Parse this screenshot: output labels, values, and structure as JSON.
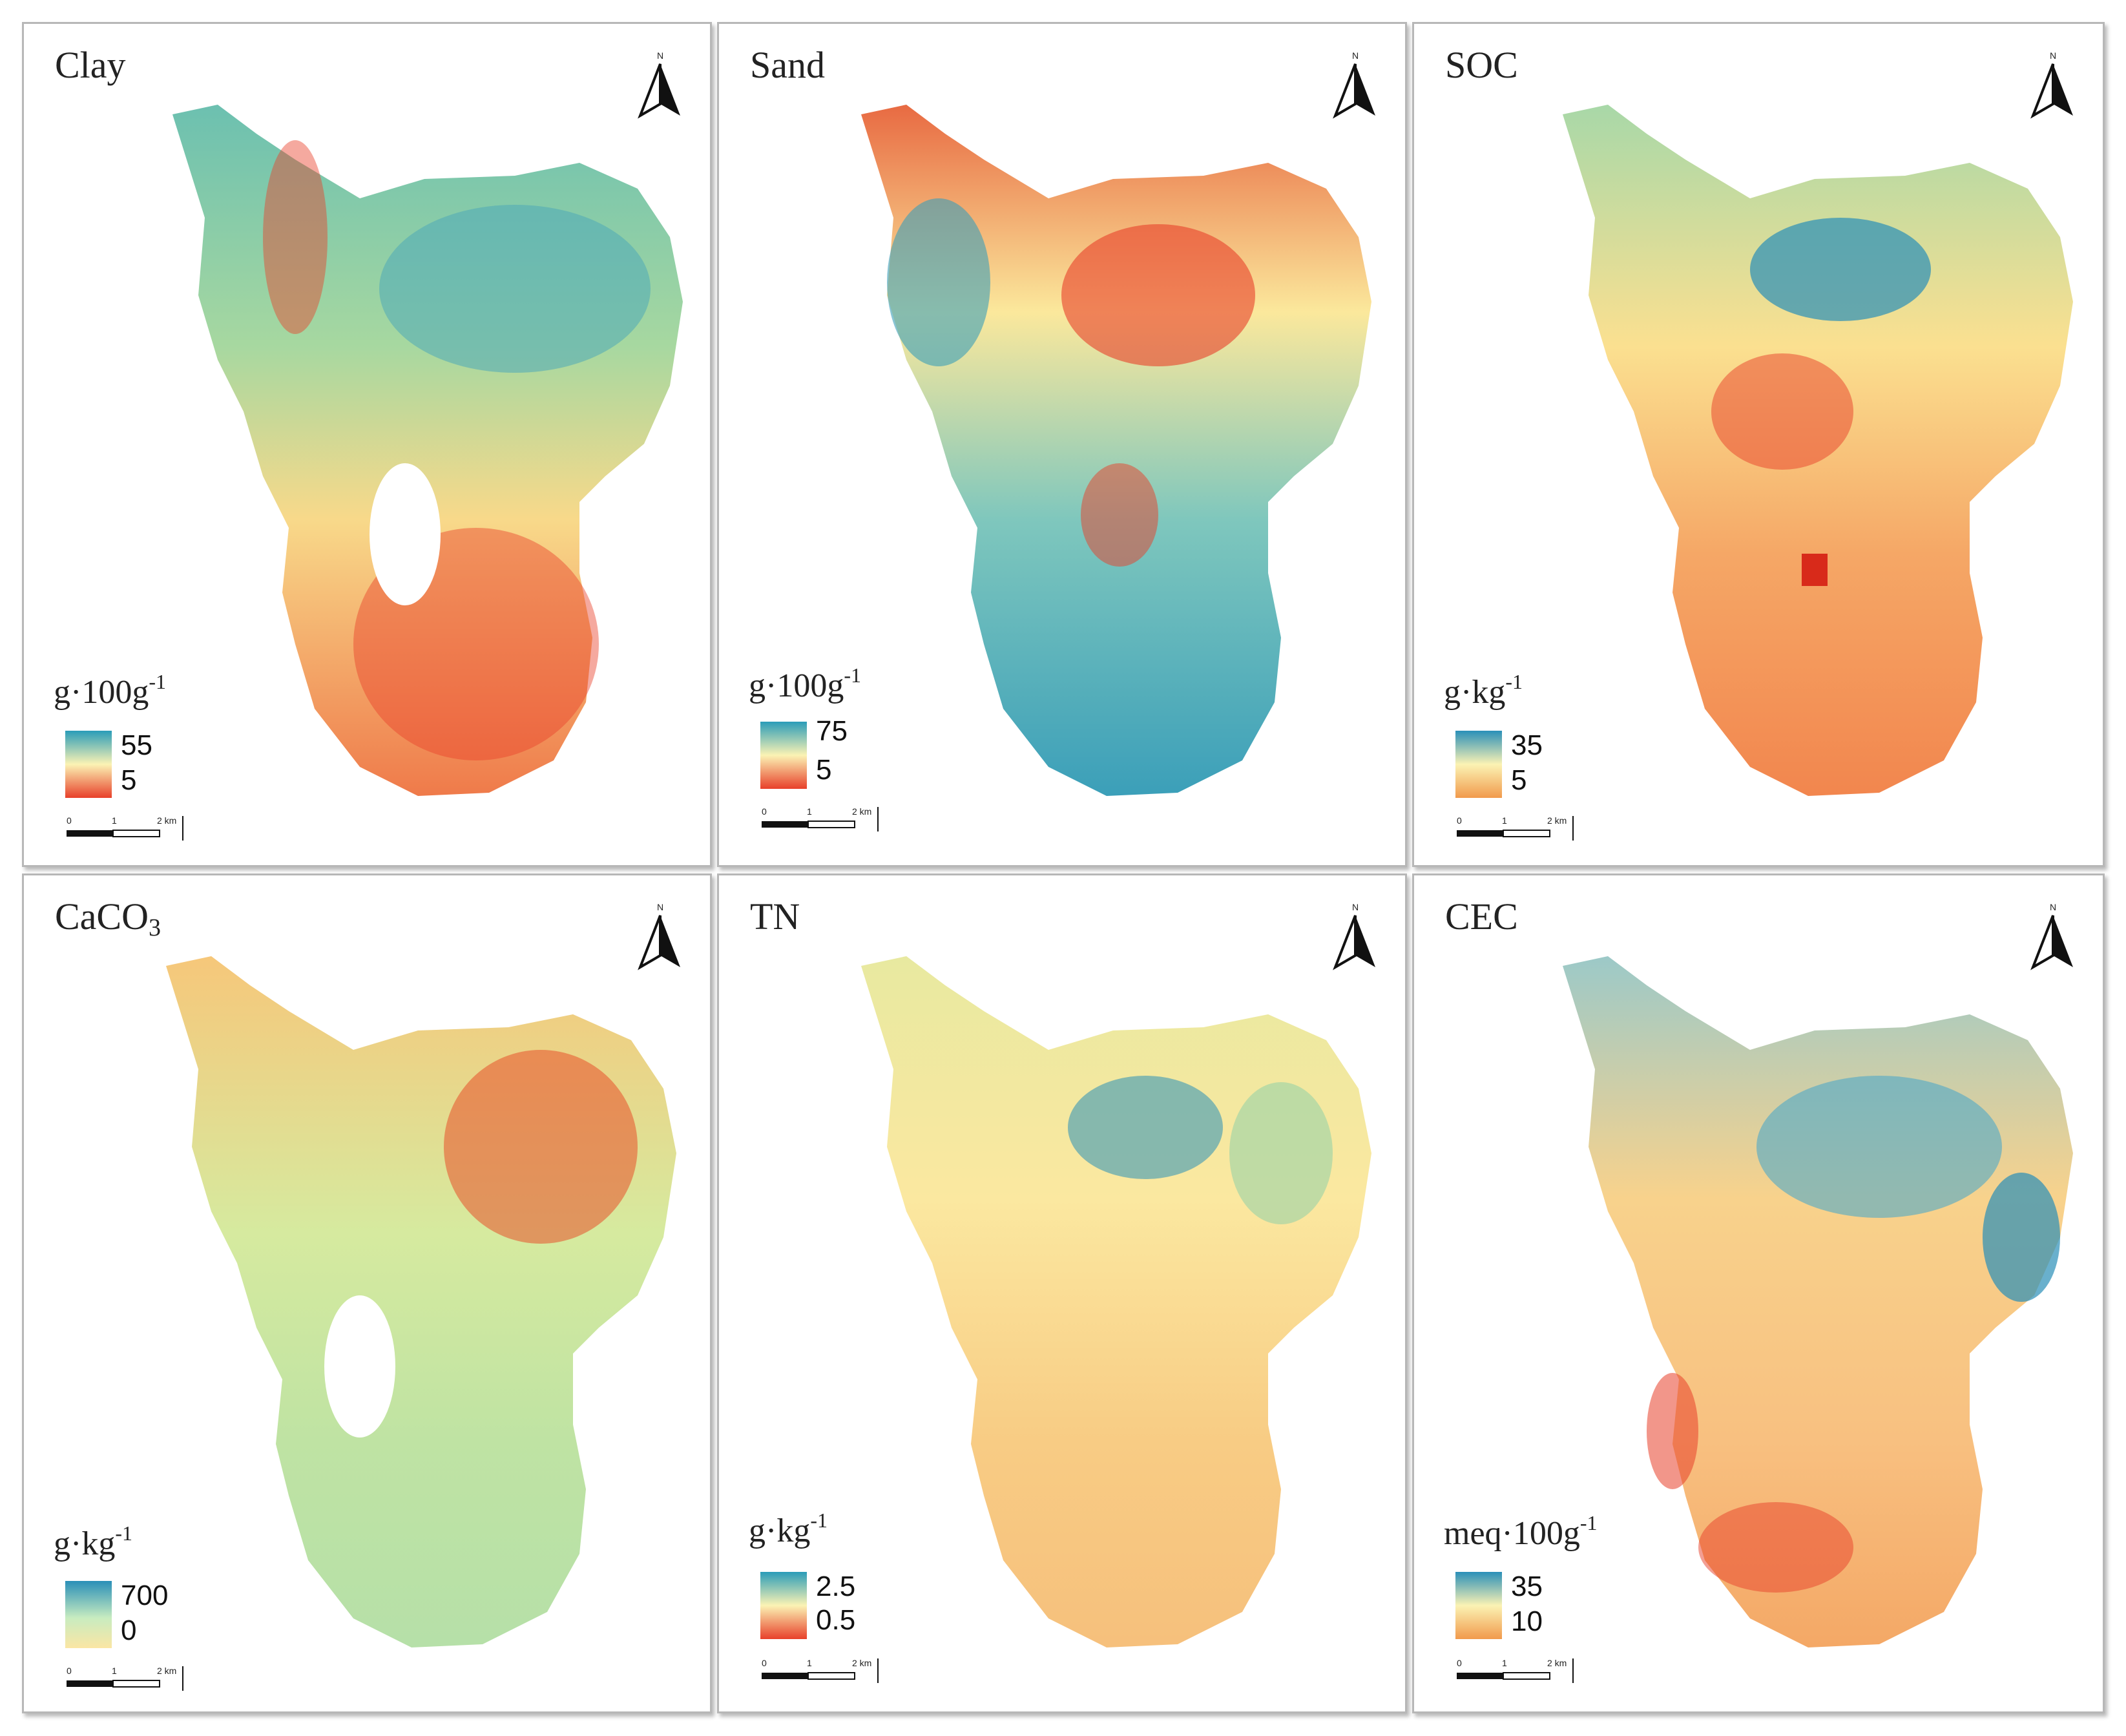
{
  "panels": [
    {
      "id": "clay",
      "title": "Clay",
      "unit_main": "g·100g",
      "unit_sup": "-1",
      "max": "55",
      "min": "5",
      "scheme": "clay"
    },
    {
      "id": "sand",
      "title": "Sand",
      "unit_main": "g·100g",
      "unit_sup": "-1",
      "max": "75",
      "min": "5",
      "scheme": "sand"
    },
    {
      "id": "soc",
      "title": "SOC",
      "unit_main": "g·kg",
      "unit_sup": "-1",
      "max": "35",
      "min": "5",
      "scheme": "soc"
    },
    {
      "id": "caco3",
      "title": "CaCO",
      "title_sub": "3",
      "unit_main": "g·kg",
      "unit_sup": "-1",
      "max": "700",
      "min": "0",
      "scheme": "caco3"
    },
    {
      "id": "tn",
      "title": "TN",
      "unit_main": "g·kg",
      "unit_sup": "-1",
      "max": "2.5",
      "min": "0.5",
      "scheme": "tn"
    },
    {
      "id": "cec",
      "title": "CEC",
      "unit_main": "meq·100g",
      "unit_sup": "-1",
      "max": "35",
      "min": "10",
      "scheme": "cec"
    }
  ],
  "north_label": "N",
  "scale": {
    "t0": "0",
    "t1": "1",
    "t2": "2 km"
  },
  "colors": {
    "high": "#2a8fb8",
    "mid": "#fdf6b0",
    "low": "#e8402a",
    "orange": "#f4a35a",
    "green": "#9fd3a3"
  }
}
